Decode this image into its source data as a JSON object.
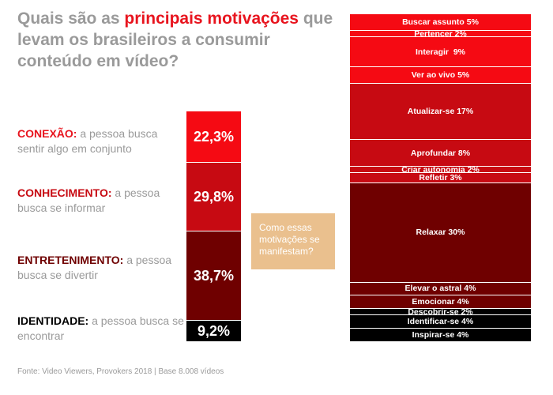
{
  "title": {
    "part1": "Quais são as ",
    "highlight": "principais motivações",
    "part2": " que levam os brasileiros a consumir conteúdo em vídeo?"
  },
  "colors": {
    "red": "#f50a13",
    "darkred": "#c70a12",
    "maroon": "#6f0000",
    "black": "#000000",
    "callout": "#eac08e"
  },
  "categories": [
    {
      "label": "CONEXÃO:",
      "desc": "a pessoa busca sentir algo em conjunto",
      "value_label": "22,3%",
      "color": "#f50a13"
    },
    {
      "label": "CONHECIMENTO:",
      "desc": "a pessoa busca se informar",
      "value_label": "29,8%",
      "color": "#c70a12"
    },
    {
      "label": "ENTRETENIMENTO:",
      "desc": "a pessoa busca se divertir",
      "value_label": "38,7%",
      "color": "#6f0000"
    },
    {
      "label": "IDENTIDADE:",
      "desc": "a pessoa busca se encontrar",
      "value_label": "9,2%",
      "color": "#000000"
    }
  ],
  "callout": "Como essas motivações se manifestam?",
  "footer": "Fonte: Video Viewers, Provokers 2018 | Base 8.008 vídeos",
  "chart_data": [
    {
      "type": "bar",
      "stacked": true,
      "categories": [
        "CONEXÃO",
        "CONHECIMENTO",
        "ENTRETENIMENTO",
        "IDENTIDADE"
      ],
      "values": [
        22.3,
        29.8,
        38.7,
        9.2
      ],
      "data_labels": [
        "22,3%",
        "29,8%",
        "38,7%",
        "9,2%"
      ]
    },
    {
      "type": "bar",
      "stacked": true,
      "categories": [
        "Buscar assunto",
        "Pertencer",
        "Interagir",
        "Ver ao vivo",
        "Atualizar-se",
        "Aprofundar",
        "Criar autonomia",
        "Refletir",
        "Relaxar",
        "Elevar o astral",
        "Emocionar",
        "Descobrir-se",
        "Identificar-se",
        "Inspirar-se"
      ],
      "values": [
        5,
        2,
        9,
        5,
        17,
        8,
        2,
        3,
        30,
        4,
        4,
        2,
        4,
        4
      ],
      "groups": [
        "CONEXÃO",
        "CONEXÃO",
        "CONEXÃO",
        "CONEXÃO",
        "CONHECIMENTO",
        "CONHECIMENTO",
        "CONHECIMENTO",
        "CONHECIMENTO",
        "ENTRETENIMENTO",
        "ENTRETENIMENTO",
        "ENTRETENIMENTO",
        "IDENTIDADE",
        "IDENTIDADE",
        "IDENTIDADE"
      ],
      "data_labels": [
        "Buscar assunto 5%",
        "Pertencer 2%",
        "Interagir  9%",
        "Ver ao vivo 5%",
        "Atualizar-se 17%",
        "Aprofundar 8%",
        "Criar autonomia 2%",
        "Refletir 3%",
        "Relaxar 30%",
        "Elevar o astral 4%",
        "Emocionar 4%",
        "Descobrir-se 2%",
        "Identificar-se 4%",
        "Inspirar-se 4%"
      ]
    }
  ]
}
